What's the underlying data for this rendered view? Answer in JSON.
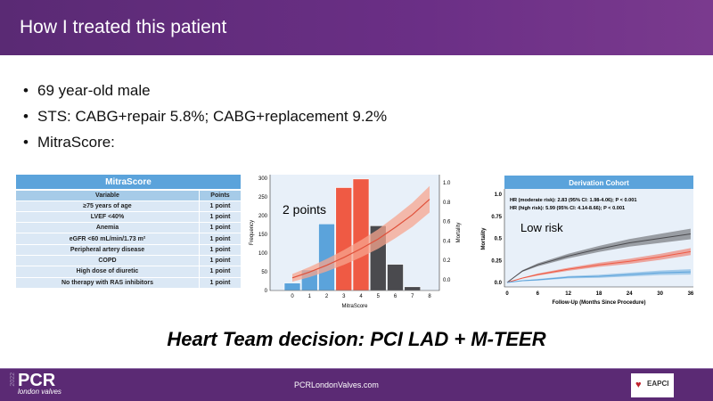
{
  "header": {
    "title": "How I treated this patient"
  },
  "bullets": [
    "69 year-old male",
    "STS:  CABG+repair 5.8%; CABG+replacement 9.2%",
    "MitraScore:"
  ],
  "mitrascore_table": {
    "title": "MitraScore",
    "columns": [
      "Variable",
      "Points"
    ],
    "rows": [
      [
        "≥75 years of age",
        "1 point"
      ],
      [
        "LVEF <40%",
        "1 point"
      ],
      [
        "Anemia",
        "1 point"
      ],
      [
        "eGFR <60 mL/min/1.73 m²",
        "1 point"
      ],
      [
        "Peripheral artery disease",
        "1 point"
      ],
      [
        "COPD",
        "1 point"
      ],
      [
        "High dose of diuretic",
        "1 point"
      ],
      [
        "No therapy with RAS inhibitors",
        "1 point"
      ]
    ]
  },
  "chart_data": [
    {
      "type": "bar",
      "xlabel": "MitraScore",
      "ylabel": "Frequency",
      "y2label": "Mortality",
      "categories": [
        "0",
        "1",
        "2",
        "3",
        "4",
        "5",
        "6",
        "7",
        "8"
      ],
      "values": [
        20,
        55,
        178,
        275,
        298,
        173,
        70,
        10,
        0
      ],
      "bar_colors": [
        "#5ba3db",
        "#5ba3db",
        "#5ba3db",
        "#ef5a44",
        "#ef5a44",
        "#4a4a4e",
        "#4a4a4e",
        "#4a4a4e",
        "#4a4a4e"
      ],
      "ylim": [
        0,
        300
      ],
      "yticks": [
        0,
        50,
        100,
        150,
        200,
        250,
        300
      ],
      "y2ticks": [
        "0.0",
        "0.2",
        "0.4",
        "0.6",
        "0.8",
        "1.0"
      ],
      "mortality_curve": {
        "x": [
          0,
          1,
          2,
          3,
          4,
          5,
          6,
          7,
          8
        ],
        "y": [
          0.02,
          0.08,
          0.15,
          0.23,
          0.32,
          0.42,
          0.54,
          0.67,
          0.83
        ]
      },
      "annotation": "2 points"
    },
    {
      "type": "line",
      "title": "Derivation Cohort",
      "xlabel": "Follow-Up (Months Since Procedure)",
      "ylabel": "Mortality",
      "xticks": [
        0,
        6,
        12,
        18,
        24,
        30,
        36
      ],
      "yticks": [
        "0.0",
        "0.25",
        "0.5",
        "0.75",
        "1.0"
      ],
      "annotations": [
        "HR (moderate risk): 2.83 (95% CI: 1.98-4.06); P < 0.001",
        "HR (high risk): 5.99 (95% CI: 4.14-8.66); P < 0.001"
      ],
      "label": "Low risk",
      "series": [
        {
          "color": "#4a4a4e",
          "x": [
            0,
            3,
            6,
            12,
            18,
            24,
            30,
            36
          ],
          "y": [
            0,
            0.13,
            0.2,
            0.3,
            0.38,
            0.45,
            0.5,
            0.55
          ]
        },
        {
          "color": "#ef5a44",
          "x": [
            0,
            3,
            6,
            12,
            18,
            24,
            30,
            36
          ],
          "y": [
            0,
            0.05,
            0.09,
            0.15,
            0.2,
            0.24,
            0.29,
            0.35
          ]
        },
        {
          "color": "#5ba3db",
          "x": [
            0,
            3,
            6,
            12,
            18,
            24,
            30,
            36
          ],
          "y": [
            0,
            0.02,
            0.03,
            0.06,
            0.07,
            0.09,
            0.11,
            0.12
          ]
        }
      ]
    }
  ],
  "decision": "Heart Team decision: PCI  LAD + M-TEER",
  "footer": {
    "year": "2022",
    "logo": "PCR",
    "logo_sub": "london valves",
    "url": "PCRLondonValves.com",
    "partner": "EAPCI"
  }
}
